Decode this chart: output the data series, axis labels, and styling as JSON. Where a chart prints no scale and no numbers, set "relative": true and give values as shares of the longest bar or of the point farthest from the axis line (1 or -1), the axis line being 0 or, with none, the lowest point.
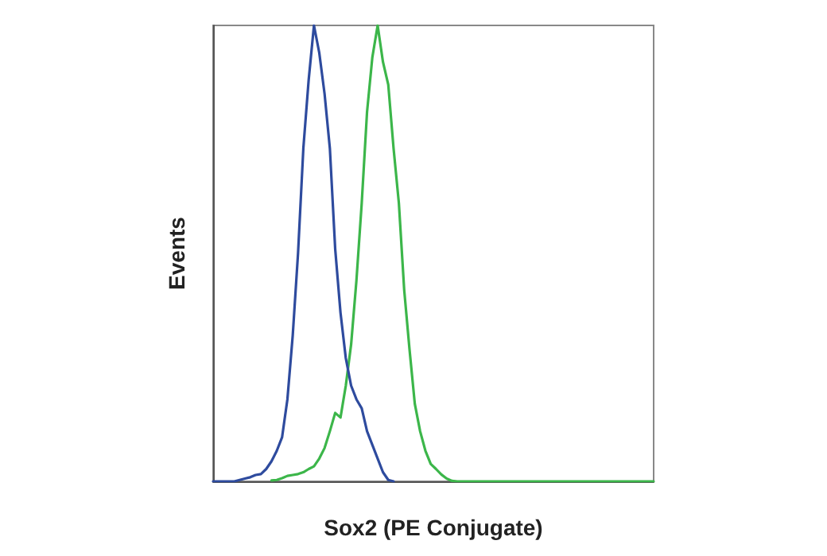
{
  "chart_data": {
    "type": "line",
    "xlabel": "Sox2 (PE Conjugate)",
    "ylabel": "Events",
    "relative": true,
    "grid": false,
    "line_style": "solid",
    "categories": [
      null,
      null,
      null,
      null,
      null,
      null,
      null,
      null,
      null,
      null,
      null,
      null,
      null,
      null,
      null,
      null,
      null,
      null,
      null,
      null,
      null,
      null,
      null,
      null,
      null,
      null,
      null,
      null,
      null,
      null,
      null,
      null,
      null,
      null,
      null,
      null,
      null,
      null,
      null,
      null,
      null,
      null,
      null,
      null,
      null,
      null,
      null,
      null,
      null,
      null,
      null,
      null,
      null,
      null,
      null,
      null,
      null,
      null,
      null,
      null,
      null,
      null,
      null,
      null,
      null,
      null,
      null,
      null,
      null,
      null,
      null,
      null,
      null,
      null,
      null,
      null,
      null,
      null,
      null,
      null,
      null,
      null,
      null,
      null
    ],
    "series": [
      {
        "color": "#2e4b9e",
        "values": [
          0,
          0,
          0,
          0,
          0,
          0.003,
          0.006,
          0.009,
          0.014,
          0.016,
          0.027,
          0.044,
          0.067,
          0.097,
          0.18,
          0.32,
          0.5,
          0.73,
          0.88,
          1,
          0.94,
          0.85,
          0.73,
          0.51,
          0.37,
          0.27,
          0.21,
          0.18,
          0.16,
          0.11,
          0.08,
          0.05,
          0.02,
          0.003,
          0,
          null,
          null,
          null,
          null,
          null,
          null,
          null,
          null,
          null,
          null,
          null,
          null,
          null,
          null,
          null,
          null,
          null,
          null,
          null,
          null,
          null,
          null,
          null,
          null,
          null,
          null,
          null,
          null,
          null,
          null,
          null,
          null,
          null,
          null,
          null,
          null,
          null,
          null,
          null,
          null,
          null,
          null,
          null,
          null,
          null,
          null,
          null,
          null,
          null
        ]
      },
      {
        "color": "#3cb64a",
        "values": [
          null,
          null,
          null,
          null,
          null,
          null,
          null,
          null,
          null,
          null,
          null,
          0.002,
          0.003,
          0.007,
          0.012,
          0.014,
          0.016,
          0.02,
          0.027,
          0.033,
          0.05,
          0.073,
          0.11,
          0.15,
          0.14,
          0.21,
          0.3,
          0.44,
          0.61,
          0.81,
          0.93,
          1,
          0.92,
          0.87,
          0.73,
          0.61,
          0.42,
          0.29,
          0.17,
          0.11,
          0.067,
          0.038,
          0.027,
          0.015,
          0.006,
          0.001,
          0,
          0,
          0,
          0,
          0,
          0,
          0,
          0,
          0,
          0,
          0,
          0,
          0,
          0,
          0,
          0,
          0,
          0,
          0,
          0,
          0,
          0,
          0,
          0,
          0,
          0,
          0,
          0,
          0,
          0,
          0,
          0,
          0,
          0,
          0,
          0,
          0,
          0
        ]
      }
    ]
  }
}
